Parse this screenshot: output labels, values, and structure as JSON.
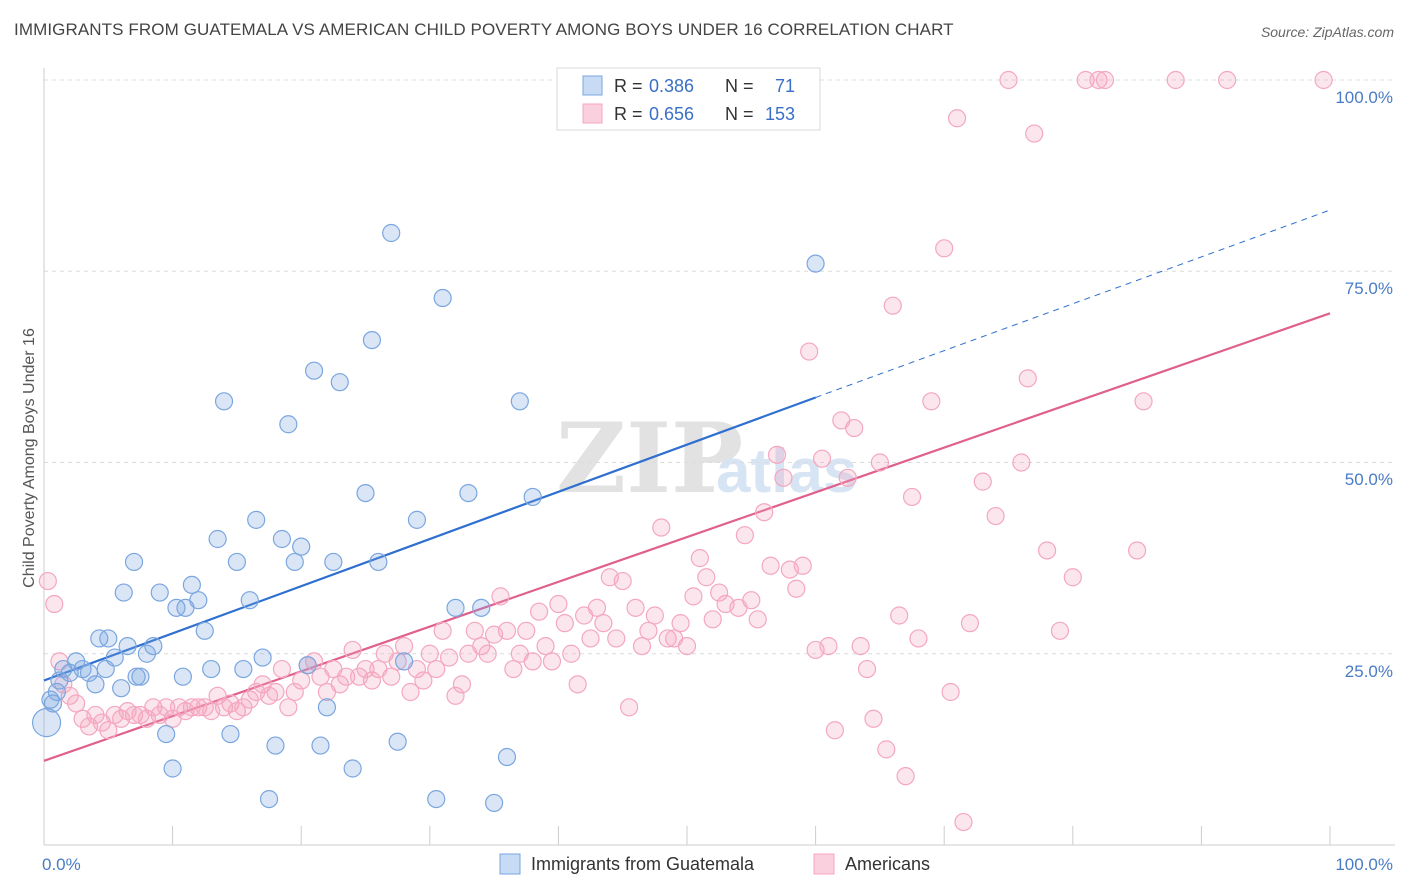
{
  "header": {
    "title": "IMMIGRANTS FROM GUATEMALA VS AMERICAN CHILD POVERTY AMONG BOYS UNDER 16 CORRELATION CHART",
    "source": "Source: ZipAtlas.com"
  },
  "watermark": {
    "zip": "ZIP",
    "atlas": "atlas"
  },
  "legend": {
    "r_label": "R =",
    "n_label": "N =",
    "rows": [
      {
        "r": "0.386",
        "n": "71"
      },
      {
        "r": "0.656",
        "n": "153"
      }
    ]
  },
  "chart_data": {
    "type": "scatter",
    "title": "IMMIGRANTS FROM GUATEMALA VS AMERICAN CHILD POVERTY AMONG BOYS UNDER 16 CORRELATION CHART",
    "xlabel": "",
    "ylabel": "Child Poverty Among Boys Under 16",
    "xlim": [
      0,
      100
    ],
    "ylim": [
      0,
      100
    ],
    "x_tick_labels": [
      "0.0%",
      "100.0%"
    ],
    "y_tick_labels": [
      "25.0%",
      "50.0%",
      "75.0%",
      "100.0%"
    ],
    "y_ticks": [
      25,
      50,
      75,
      100
    ],
    "grid": true,
    "legend_position": "top-center",
    "series": [
      {
        "name": "Immigrants from Guatemala",
        "color": "#7aa6e0",
        "line_color": "#2e6fcf",
        "trend": {
          "x0": 0,
          "y0": 21.5,
          "x1": 60,
          "y1": 58.5,
          "dash_to_x": 100,
          "dash_to_y": 83
        },
        "points": [
          [
            0.5,
            19
          ],
          [
            0.7,
            18.5
          ],
          [
            1,
            20
          ],
          [
            1.2,
            21.5
          ],
          [
            1.5,
            23
          ],
          [
            2,
            22.5
          ],
          [
            2.5,
            24
          ],
          [
            3,
            23
          ],
          [
            3.5,
            22.5
          ],
          [
            4,
            21
          ],
          [
            4.3,
            27
          ],
          [
            4.8,
            23
          ],
          [
            5,
            27
          ],
          [
            5.5,
            24.5
          ],
          [
            6,
            20.5
          ],
          [
            6.2,
            33
          ],
          [
            6.5,
            26
          ],
          [
            7,
            37
          ],
          [
            7.2,
            22
          ],
          [
            7.5,
            22
          ],
          [
            8,
            25
          ],
          [
            8.5,
            26
          ],
          [
            9,
            33
          ],
          [
            9.5,
            14.5
          ],
          [
            10,
            10
          ],
          [
            10.3,
            31
          ],
          [
            10.8,
            22
          ],
          [
            11,
            31
          ],
          [
            11.5,
            34
          ],
          [
            12,
            32
          ],
          [
            12.5,
            28
          ],
          [
            13,
            23
          ],
          [
            13.5,
            40
          ],
          [
            14,
            58
          ],
          [
            14.5,
            14.5
          ],
          [
            15,
            37
          ],
          [
            15.5,
            23
          ],
          [
            16,
            32
          ],
          [
            16.5,
            42.5
          ],
          [
            17,
            24.5
          ],
          [
            17.5,
            6
          ],
          [
            18,
            13
          ],
          [
            18.5,
            40
          ],
          [
            19,
            55
          ],
          [
            19.5,
            37
          ],
          [
            20,
            39
          ],
          [
            20.5,
            23.5
          ],
          [
            21,
            62
          ],
          [
            21.5,
            13
          ],
          [
            22,
            18
          ],
          [
            22.5,
            37
          ],
          [
            23,
            60.5
          ],
          [
            24,
            10
          ],
          [
            25,
            46
          ],
          [
            25.5,
            66
          ],
          [
            26,
            37
          ],
          [
            27,
            80
          ],
          [
            27.5,
            13.5
          ],
          [
            28,
            24
          ],
          [
            29,
            42.5
          ],
          [
            30.5,
            6
          ],
          [
            31,
            71.5
          ],
          [
            32,
            31
          ],
          [
            33,
            46
          ],
          [
            34,
            31
          ],
          [
            35,
            5.5
          ],
          [
            36,
            11.5
          ],
          [
            37,
            58
          ],
          [
            38,
            45.5
          ],
          [
            60,
            76
          ],
          [
            0.2,
            16
          ]
        ]
      },
      {
        "name": "Americans",
        "color": "#f4a7bf",
        "line_color": "#e0608d",
        "trend": {
          "x0": 0,
          "y0": 11,
          "x1": 100,
          "y1": 69.5
        },
        "points": [
          [
            0.3,
            34.5
          ],
          [
            0.8,
            31.5
          ],
          [
            1.2,
            24
          ],
          [
            1.5,
            21
          ],
          [
            2,
            19.5
          ],
          [
            2.5,
            18.5
          ],
          [
            3,
            16.5
          ],
          [
            3.5,
            15.5
          ],
          [
            4,
            17
          ],
          [
            4.5,
            16
          ],
          [
            5,
            15
          ],
          [
            5.5,
            17
          ],
          [
            6,
            16.5
          ],
          [
            6.5,
            17.5
          ],
          [
            7,
            17
          ],
          [
            7.5,
            17
          ],
          [
            8,
            16.5
          ],
          [
            8.5,
            18
          ],
          [
            9,
            17
          ],
          [
            9.5,
            18
          ],
          [
            10,
            16.5
          ],
          [
            10.5,
            18
          ],
          [
            11,
            17.5
          ],
          [
            11.5,
            18
          ],
          [
            12,
            18
          ],
          [
            12.5,
            18
          ],
          [
            13,
            17.5
          ],
          [
            13.5,
            19.5
          ],
          [
            14,
            18
          ],
          [
            14.5,
            18.5
          ],
          [
            15,
            17.5
          ],
          [
            15.5,
            18
          ],
          [
            16,
            19
          ],
          [
            16.5,
            20
          ],
          [
            17,
            21
          ],
          [
            17.5,
            19.5
          ],
          [
            18,
            20
          ],
          [
            18.5,
            23
          ],
          [
            19,
            18
          ],
          [
            19.5,
            20
          ],
          [
            20,
            21.5
          ],
          [
            20.5,
            23.5
          ],
          [
            21,
            24
          ],
          [
            21.5,
            22
          ],
          [
            22,
            20
          ],
          [
            22.5,
            23
          ],
          [
            23,
            21
          ],
          [
            23.5,
            22
          ],
          [
            24,
            25.5
          ],
          [
            24.5,
            22
          ],
          [
            25,
            23
          ],
          [
            25.5,
            21.5
          ],
          [
            26,
            23
          ],
          [
            26.5,
            25
          ],
          [
            27,
            22
          ],
          [
            27.5,
            24
          ],
          [
            28,
            26
          ],
          [
            28.5,
            20
          ],
          [
            29,
            23
          ],
          [
            29.5,
            21.5
          ],
          [
            30,
            25
          ],
          [
            30.5,
            23
          ],
          [
            31,
            28
          ],
          [
            31.5,
            24.5
          ],
          [
            32,
            19.5
          ],
          [
            32.5,
            21
          ],
          [
            33,
            25
          ],
          [
            33.5,
            28
          ],
          [
            34,
            26
          ],
          [
            34.5,
            25
          ],
          [
            35,
            27.5
          ],
          [
            35.5,
            32.5
          ],
          [
            36,
            28
          ],
          [
            36.5,
            23
          ],
          [
            37,
            25
          ],
          [
            37.5,
            28
          ],
          [
            38,
            24
          ],
          [
            38.5,
            30.5
          ],
          [
            39,
            26
          ],
          [
            39.5,
            24
          ],
          [
            40,
            31.5
          ],
          [
            40.5,
            29
          ],
          [
            41,
            25
          ],
          [
            41.5,
            21
          ],
          [
            42,
            30
          ],
          [
            42.5,
            27
          ],
          [
            43,
            31
          ],
          [
            43.5,
            29
          ],
          [
            44,
            35
          ],
          [
            44.5,
            27
          ],
          [
            45,
            34.5
          ],
          [
            45.5,
            18
          ],
          [
            46,
            31
          ],
          [
            46.5,
            26
          ],
          [
            47,
            28
          ],
          [
            47.5,
            30
          ],
          [
            48,
            41.5
          ],
          [
            48.5,
            27
          ],
          [
            49,
            27
          ],
          [
            49.5,
            29
          ],
          [
            50,
            26
          ],
          [
            50.5,
            32.5
          ],
          [
            51,
            37.5
          ],
          [
            51.5,
            35
          ],
          [
            52,
            29.5
          ],
          [
            52.5,
            33
          ],
          [
            53,
            31.5
          ],
          [
            54,
            31
          ],
          [
            54.5,
            40.5
          ],
          [
            55,
            32
          ],
          [
            55.5,
            29.5
          ],
          [
            56,
            43.5
          ],
          [
            56.5,
            36.5
          ],
          [
            57,
            51
          ],
          [
            57.5,
            48
          ],
          [
            58,
            36
          ],
          [
            58.5,
            33.5
          ],
          [
            59,
            36.5
          ],
          [
            59.5,
            64.5
          ],
          [
            60,
            25.5
          ],
          [
            60.5,
            50.5
          ],
          [
            61,
            26
          ],
          [
            61.5,
            15
          ],
          [
            62,
            55.5
          ],
          [
            62.5,
            48
          ],
          [
            63,
            54.5
          ],
          [
            63.5,
            26
          ],
          [
            64,
            23
          ],
          [
            64.5,
            16.5
          ],
          [
            65,
            50
          ],
          [
            65.5,
            12.5
          ],
          [
            66,
            70.5
          ],
          [
            66.5,
            30
          ],
          [
            67,
            9
          ],
          [
            67.5,
            45.5
          ],
          [
            68,
            27
          ],
          [
            69,
            58
          ],
          [
            70,
            78
          ],
          [
            70.5,
            20
          ],
          [
            71,
            95
          ],
          [
            71.5,
            3
          ],
          [
            72,
            29
          ],
          [
            73,
            47.5
          ],
          [
            74,
            43
          ],
          [
            75,
            100
          ],
          [
            76,
            50
          ],
          [
            76.5,
            61
          ],
          [
            77,
            93
          ],
          [
            78,
            38.5
          ],
          [
            79,
            28
          ],
          [
            80,
            35
          ],
          [
            81,
            100
          ],
          [
            82,
            100
          ],
          [
            82.5,
            100
          ],
          [
            85,
            38.5
          ],
          [
            85.5,
            58
          ],
          [
            88,
            100
          ],
          [
            92,
            100
          ],
          [
            99.5,
            100
          ]
        ]
      }
    ]
  },
  "bottom_legend": [
    {
      "label": "Immigrants from Guatemala"
    },
    {
      "label": "Americans"
    }
  ]
}
